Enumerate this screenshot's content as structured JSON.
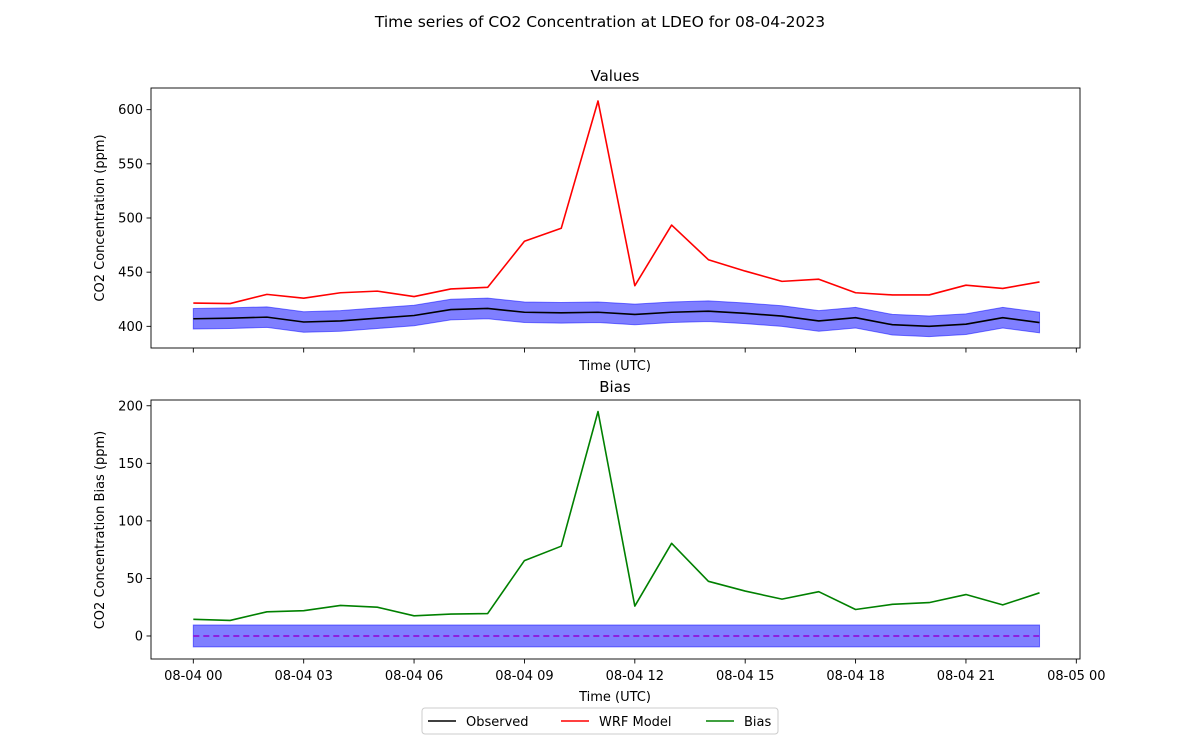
{
  "figure_title": "Time series of CO2 Concentration at LDEO for 08-04-2023",
  "legend": [
    {
      "label": "Observed",
      "color": "#000000"
    },
    {
      "label": "WRF Model",
      "color": "#ff0000"
    },
    {
      "label": "Bias",
      "color": "#008000"
    }
  ],
  "chart_data": [
    {
      "type": "line",
      "title": "Values",
      "xlabel": "Time (UTC)",
      "ylabel": "CO2 Concentration (ppm)",
      "x": [
        "08-04 00",
        "08-04 01",
        "08-04 02",
        "08-04 03",
        "08-04 04",
        "08-04 05",
        "08-04 06",
        "08-04 07",
        "08-04 08",
        "08-04 09",
        "08-04 10",
        "08-04 11",
        "08-04 12",
        "08-04 13",
        "08-04 14",
        "08-04 15",
        "08-04 16",
        "08-04 17",
        "08-04 18",
        "08-04 19",
        "08-04 20",
        "08-04 21",
        "08-04 22",
        "08-04 23"
      ],
      "xlim_hours": [
        -1.15,
        24.1
      ],
      "ylim": [
        380,
        620
      ],
      "xticks": [
        {
          "hour": 0,
          "label": ""
        },
        {
          "hour": 3,
          "label": ""
        },
        {
          "hour": 6,
          "label": ""
        },
        {
          "hour": 9,
          "label": ""
        },
        {
          "hour": 12,
          "label": ""
        },
        {
          "hour": 15,
          "label": ""
        },
        {
          "hour": 18,
          "label": ""
        },
        {
          "hour": 21,
          "label": ""
        },
        {
          "hour": 24,
          "label": ""
        }
      ],
      "yticks": [
        400,
        450,
        500,
        550,
        600
      ],
      "series": [
        {
          "name": "Observed",
          "color": "#000000",
          "values": [
            407,
            407.5,
            408.5,
            404,
            405,
            407.5,
            410,
            415.5,
            416.5,
            413,
            412.5,
            413,
            411,
            413,
            414,
            412,
            409.5,
            405,
            408,
            401.5,
            400,
            402,
            408,
            403.5
          ]
        },
        {
          "name": "WRF Model",
          "color": "#ff0000",
          "values": [
            421.5,
            421,
            429.5,
            426,
            431,
            432.5,
            427.5,
            434.5,
            436,
            478.5,
            490.5,
            608,
            437.5,
            493.5,
            461.5,
            451,
            441.5,
            443.5,
            431,
            429,
            429,
            438,
            435,
            441
          ]
        }
      ],
      "band": {
        "color": "#0000ff",
        "opacity": 0.5,
        "halfwidth": 9.5,
        "around": "Observed"
      }
    },
    {
      "type": "line",
      "title": "Bias",
      "xlabel": "Time (UTC)",
      "ylabel": "CO2 Concentration Bias (ppm)",
      "x": [
        "08-04 00",
        "08-04 01",
        "08-04 02",
        "08-04 03",
        "08-04 04",
        "08-04 05",
        "08-04 06",
        "08-04 07",
        "08-04 08",
        "08-04 09",
        "08-04 10",
        "08-04 11",
        "08-04 12",
        "08-04 13",
        "08-04 14",
        "08-04 15",
        "08-04 16",
        "08-04 17",
        "08-04 18",
        "08-04 19",
        "08-04 20",
        "08-04 21",
        "08-04 22",
        "08-04 23"
      ],
      "xlim_hours": [
        -1.15,
        24.1
      ],
      "ylim": [
        -20,
        205
      ],
      "xticks": [
        {
          "hour": 0,
          "label": "08-04 00"
        },
        {
          "hour": 3,
          "label": "08-04 03"
        },
        {
          "hour": 6,
          "label": "08-04 06"
        },
        {
          "hour": 9,
          "label": "08-04 09"
        },
        {
          "hour": 12,
          "label": "08-04 12"
        },
        {
          "hour": 15,
          "label": "08-04 15"
        },
        {
          "hour": 18,
          "label": "08-04 18"
        },
        {
          "hour": 21,
          "label": "08-04 21"
        },
        {
          "hour": 24,
          "label": "08-05 00"
        }
      ],
      "yticks": [
        0,
        50,
        100,
        150,
        200
      ],
      "series": [
        {
          "name": "Bias",
          "color": "#008000",
          "values": [
            14.5,
            13.5,
            21,
            22,
            26.5,
            25,
            17.5,
            19,
            19.5,
            65.5,
            78,
            195,
            26,
            80.5,
            47.5,
            39,
            32,
            38.5,
            23,
            27.5,
            29,
            36,
            27,
            37.5
          ]
        }
      ],
      "band": {
        "color": "#0000ff",
        "opacity": 0.5,
        "halfwidth": 9.5,
        "around": 0
      },
      "zero_line": {
        "value": 0,
        "color": "#9400d3",
        "style": "dashed"
      }
    }
  ]
}
